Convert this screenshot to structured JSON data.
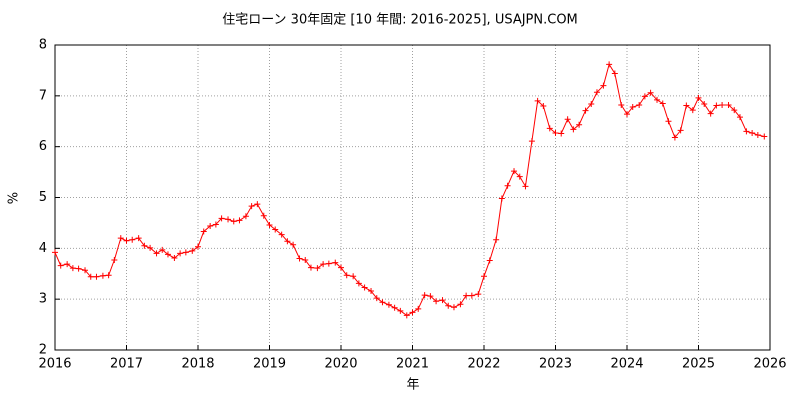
{
  "chart_data": {
    "type": "line",
    "title": "住宅ローン 30年固定 [10 年間: 2016-2025], USAJPN.COM",
    "xlabel": "年",
    "ylabel": "%",
    "color": "#ff0000",
    "grid": true,
    "xlim": [
      2016,
      2026
    ],
    "xticks": [
      2016,
      2017,
      2018,
      2019,
      2020,
      2021,
      2022,
      2023,
      2024,
      2025,
      2026
    ],
    "ylim": [
      2,
      8
    ],
    "yticks": [
      2,
      3,
      4,
      5,
      6,
      7,
      8
    ],
    "x": [
      2016.0,
      2016.08,
      2016.17,
      2016.25,
      2016.33,
      2016.42,
      2016.5,
      2016.58,
      2016.67,
      2016.75,
      2016.83,
      2016.92,
      2017.0,
      2017.08,
      2017.17,
      2017.25,
      2017.33,
      2017.42,
      2017.5,
      2017.58,
      2017.67,
      2017.75,
      2017.83,
      2017.92,
      2018.0,
      2018.08,
      2018.17,
      2018.25,
      2018.33,
      2018.42,
      2018.5,
      2018.58,
      2018.67,
      2018.75,
      2018.83,
      2018.92,
      2019.0,
      2019.08,
      2019.17,
      2019.25,
      2019.33,
      2019.42,
      2019.5,
      2019.58,
      2019.67,
      2019.75,
      2019.83,
      2019.92,
      2020.0,
      2020.08,
      2020.17,
      2020.25,
      2020.33,
      2020.42,
      2020.5,
      2020.58,
      2020.67,
      2020.75,
      2020.83,
      2020.92,
      2021.0,
      2021.08,
      2021.17,
      2021.25,
      2021.33,
      2021.42,
      2021.5,
      2021.58,
      2021.67,
      2021.75,
      2021.83,
      2021.92,
      2022.0,
      2022.08,
      2022.17,
      2022.25,
      2022.33,
      2022.42,
      2022.5,
      2022.58,
      2022.67,
      2022.75,
      2022.83,
      2022.92,
      2023.0,
      2023.08,
      2023.17,
      2023.25,
      2023.33,
      2023.42,
      2023.5,
      2023.58,
      2023.67,
      2023.75,
      2023.83,
      2023.92,
      2024.0,
      2024.08,
      2024.17,
      2024.25,
      2024.33,
      2024.42,
      2024.5,
      2024.58,
      2024.67,
      2024.75,
      2024.83,
      2024.92,
      2025.0,
      2025.08,
      2025.17,
      2025.25,
      2025.33,
      2025.42,
      2025.5,
      2025.58,
      2025.67,
      2025.75,
      2025.83,
      2025.92
    ],
    "values": [
      3.92,
      3.66,
      3.69,
      3.61,
      3.6,
      3.57,
      3.44,
      3.44,
      3.46,
      3.47,
      3.77,
      4.2,
      4.15,
      4.17,
      4.2,
      4.05,
      4.01,
      3.9,
      3.97,
      3.88,
      3.81,
      3.9,
      3.92,
      3.95,
      4.03,
      4.33,
      4.44,
      4.47,
      4.59,
      4.57,
      4.53,
      4.55,
      4.63,
      4.83,
      4.87,
      4.64,
      4.46,
      4.37,
      4.27,
      4.14,
      4.07,
      3.8,
      3.77,
      3.62,
      3.61,
      3.69,
      3.7,
      3.72,
      3.62,
      3.47,
      3.45,
      3.31,
      3.23,
      3.16,
      3.02,
      2.94,
      2.89,
      2.83,
      2.77,
      2.68,
      2.74,
      2.81,
      3.08,
      3.06,
      2.96,
      2.98,
      2.87,
      2.84,
      2.9,
      3.07,
      3.07,
      3.1,
      3.45,
      3.76,
      4.17,
      4.98,
      5.23,
      5.52,
      5.41,
      5.22,
      6.11,
      6.9,
      6.8,
      6.36,
      6.27,
      6.26,
      6.54,
      6.34,
      6.43,
      6.71,
      6.84,
      7.07,
      7.2,
      7.62,
      7.44,
      6.82,
      6.64,
      6.78,
      6.82,
      6.99,
      7.06,
      6.92,
      6.85,
      6.5,
      6.18,
      6.32,
      6.81,
      6.72,
      6.96,
      6.84,
      6.65,
      6.81,
      6.82,
      6.82,
      6.72,
      6.58,
      6.3,
      6.27,
      6.23,
      6.2
    ]
  }
}
